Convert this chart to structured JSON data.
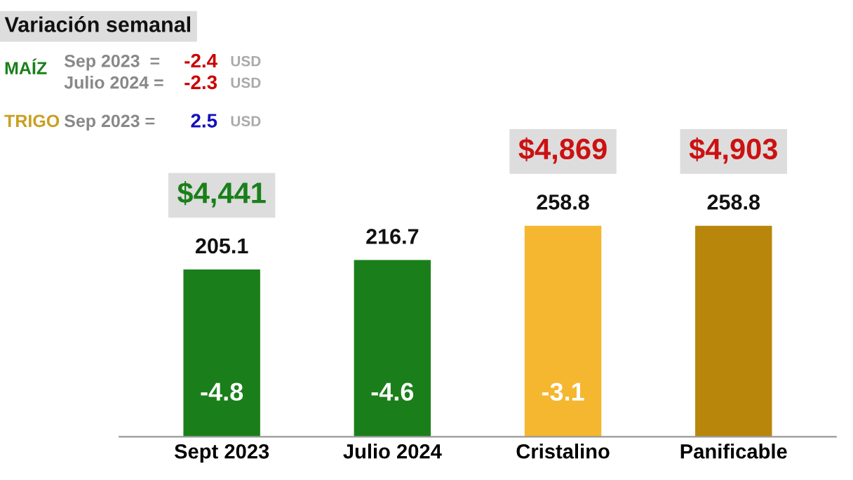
{
  "chart_data": {
    "type": "bar",
    "categories": [
      "Sept 2023",
      "Julio 2024",
      "Cristalino",
      "Panificable"
    ],
    "values": [
      205.1,
      216.7,
      258.8,
      258.8
    ],
    "colors": [
      "#1a7f1a",
      "#1a7f1a",
      "#f5b730",
      "#b8860b"
    ],
    "data_labels": true,
    "annotations": [
      "Variación semanal",
      "MAÍZ",
      "Sep 2023  =",
      "-2.4",
      "USD",
      "Julio 2024 =",
      "-2.3",
      "USD",
      "TRIGO",
      "Sep 2023 =",
      "2.5",
      "USD",
      "$4,441",
      "$4,869",
      "$4,903",
      "-4.8",
      "-4.6",
      "-3.1"
    ]
  }
}
